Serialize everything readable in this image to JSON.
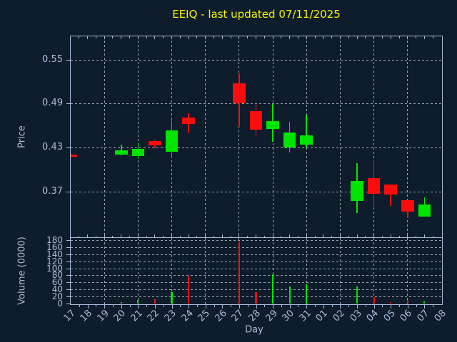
{
  "window": {
    "title": "EEIQ - last updated 07/11/2025"
  },
  "colors": {
    "background": "#0f1c2b",
    "axis": "#a6bedb",
    "text": "#a6bedb",
    "grid": "#c7d1dd",
    "title": "#f5f500",
    "up": "#00e500",
    "down": "#fb0d0d"
  },
  "chart_data": {
    "type": "candlestick",
    "title": "EEIQ - last updated 07/11/2025",
    "xlabel": "Day",
    "x_categories": [
      "17",
      "18",
      "19",
      "20",
      "21",
      "22",
      "23",
      "24",
      "25",
      "26",
      "27",
      "28",
      "29",
      "30",
      "31",
      "01",
      "02",
      "03",
      "04",
      "05",
      "06",
      "07",
      "08"
    ],
    "grid": "dashed, vertical every 2 days, horizontal at y ticks",
    "legend_position": "none",
    "panels": [
      {
        "name": "price",
        "ylabel": "Price",
        "yticks": [
          0.37,
          0.43,
          0.49,
          0.55
        ],
        "ylim": [
          0.308,
          0.581
        ]
      },
      {
        "name": "volume",
        "ylabel": "Volume (0000)",
        "yticks": [
          0,
          20,
          40,
          60,
          80,
          100,
          120,
          140,
          160,
          180
        ],
        "ylim": [
          0,
          188
        ]
      }
    ],
    "candles": [
      {
        "day": "17",
        "open": 0.42,
        "high": 0.421,
        "low": 0.418,
        "close": 0.419,
        "volume": 2
      },
      {
        "day": "20",
        "open": 0.42,
        "high": 0.434,
        "low": 0.419,
        "close": 0.426,
        "volume": 4
      },
      {
        "day": "21",
        "open": 0.418,
        "high": 0.437,
        "low": 0.415,
        "close": 0.428,
        "volume": 10
      },
      {
        "day": "22",
        "open": 0.439,
        "high": 0.44,
        "low": 0.429,
        "close": 0.433,
        "volume": 12
      },
      {
        "day": "23",
        "open": 0.424,
        "high": 0.467,
        "low": 0.416,
        "close": 0.453,
        "volume": 32
      },
      {
        "day": "24",
        "open": 0.471,
        "high": 0.477,
        "low": 0.451,
        "close": 0.462,
        "volume": 78
      },
      {
        "day": "27",
        "open": 0.518,
        "high": 0.531,
        "low": 0.458,
        "close": 0.49,
        "volume": 175
      },
      {
        "day": "28",
        "open": 0.48,
        "high": 0.489,
        "low": 0.445,
        "close": 0.454,
        "volume": 33
      },
      {
        "day": "29",
        "open": 0.455,
        "high": 0.489,
        "low": 0.438,
        "close": 0.466,
        "volume": 83
      },
      {
        "day": "30",
        "open": 0.43,
        "high": 0.465,
        "low": 0.423,
        "close": 0.451,
        "volume": 48
      },
      {
        "day": "31",
        "open": 0.434,
        "high": 0.474,
        "low": 0.429,
        "close": 0.447,
        "volume": 54
      },
      {
        "day": "03",
        "open": 0.357,
        "high": 0.409,
        "low": 0.341,
        "close": 0.384,
        "volume": 48
      },
      {
        "day": "04",
        "open": 0.388,
        "high": 0.413,
        "low": 0.349,
        "close": 0.367,
        "volume": 18
      },
      {
        "day": "05",
        "open": 0.38,
        "high": 0.38,
        "low": 0.35,
        "close": 0.366,
        "volume": 5
      },
      {
        "day": "06",
        "open": 0.358,
        "high": 0.358,
        "low": 0.334,
        "close": 0.343,
        "volume": 10
      },
      {
        "day": "07",
        "open": 0.336,
        "high": 0.362,
        "low": 0.336,
        "close": 0.352,
        "volume": 6
      }
    ]
  }
}
